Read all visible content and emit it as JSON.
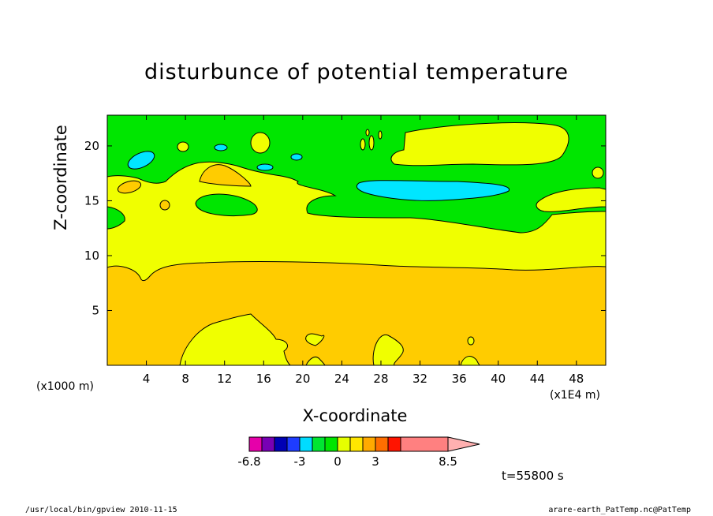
{
  "chart_data": {
    "type": "contour",
    "title": "disturbunce of potential temperature",
    "xlabel": "X-coordinate",
    "ylabel": "Z-coordinate",
    "x_unit_left": "(x1000 m)",
    "x_unit_right": "(x1E4 m)",
    "xlim": [
      0,
      51
    ],
    "ylim": [
      0,
      22.8
    ],
    "x_ticks": [
      "4",
      "8",
      "12",
      "16",
      "20",
      "24",
      "28",
      "32",
      "36",
      "40",
      "44",
      "48"
    ],
    "y_ticks": [
      "5",
      "10",
      "15",
      "20"
    ],
    "colorbar": {
      "tick_labels": [
        "-6.8",
        "-3",
        "0",
        "3",
        "8.5"
      ],
      "colors": [
        "#e600aa",
        "#7800b4",
        "#0000b4",
        "#1e3cff",
        "#00dcff",
        "#00e632",
        "#00e600",
        "#e6ff00",
        "#ffe600",
        "#ffaa00",
        "#ff6e00",
        "#ff1400",
        "#ff8080",
        "#ffb0b0"
      ]
    },
    "time_label": "t=55800 s",
    "field_colors": {
      "cyan": "#00e6ff",
      "green": "#00e600",
      "yellow": "#f0ff00",
      "orange": "#ffcc00",
      "dark_orange": "#ffaa00"
    }
  },
  "footer": {
    "left": "/usr/local/bin/gpview  2010-11-15",
    "right": "arare-earth_PatTemp.nc@PatTemp"
  }
}
